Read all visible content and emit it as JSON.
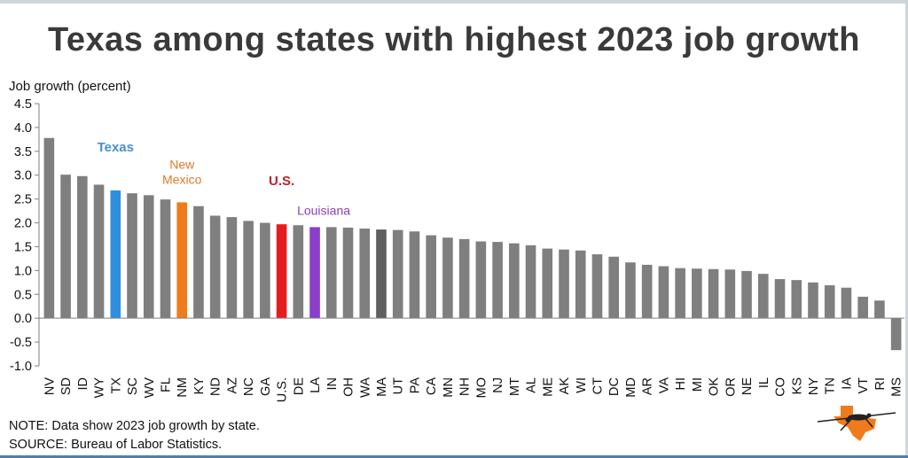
{
  "title": "Texas among states with highest 2023 job growth",
  "ylabel": "Job growth (percent)",
  "note": "NOTE: Data show 2023 job growth by state.",
  "source": "SOURCE: Bureau of Labor Statistics.",
  "colors": {
    "default_bar": "#7f7f7f",
    "texas": "#2f8fdd",
    "new_mexico": "#f07b1a",
    "us": "#e41e1e",
    "louisiana": "#8a3fc8",
    "massachusetts": "#5f5f5f",
    "texas_label": "#4a8fd0",
    "new_mexico_label": "#e07a26",
    "us_label": "#c0202a",
    "louisiana_label": "#8a3fb8"
  },
  "annotations": [
    {
      "text": "Texas",
      "state": "TX"
    },
    {
      "text": "New Mexico",
      "state": "NM"
    },
    {
      "text": "U.S.",
      "state": "U.S."
    },
    {
      "text": "Louisiana",
      "state": "LA"
    }
  ],
  "chart_data": {
    "type": "bar",
    "title": "Texas among states with highest 2023 job growth",
    "ylabel": "Job growth (percent)",
    "ylim": [
      -1.0,
      4.5
    ],
    "yticks": [
      -1.0,
      -0.5,
      0.0,
      0.5,
      1.0,
      1.5,
      2.0,
      2.5,
      3.0,
      3.5,
      4.0,
      4.5
    ],
    "grid": false,
    "categories": [
      "NV",
      "SD",
      "ID",
      "WY",
      "TX",
      "SC",
      "WV",
      "FL",
      "NM",
      "KY",
      "ND",
      "AZ",
      "NC",
      "GA",
      "U.S.",
      "DE",
      "LA",
      "IN",
      "OH",
      "WA",
      "MA",
      "UT",
      "PA",
      "CA",
      "MN",
      "NH",
      "MO",
      "NJ",
      "MT",
      "AL",
      "ME",
      "AK",
      "WI",
      "CT",
      "DC",
      "MD",
      "AR",
      "VA",
      "HI",
      "MI",
      "OK",
      "OR",
      "NE",
      "IL",
      "CO",
      "KS",
      "NY",
      "TN",
      "IA",
      "VT",
      "RI",
      "MS"
    ],
    "values": [
      3.78,
      3.01,
      2.98,
      2.8,
      2.68,
      2.62,
      2.58,
      2.49,
      2.43,
      2.35,
      2.15,
      2.12,
      2.04,
      2.0,
      1.97,
      1.95,
      1.91,
      1.91,
      1.9,
      1.88,
      1.86,
      1.85,
      1.82,
      1.74,
      1.69,
      1.66,
      1.61,
      1.6,
      1.57,
      1.53,
      1.46,
      1.44,
      1.42,
      1.34,
      1.29,
      1.17,
      1.12,
      1.09,
      1.05,
      1.04,
      1.03,
      1.02,
      0.99,
      0.93,
      0.82,
      0.8,
      0.75,
      0.69,
      0.64,
      0.45,
      0.37,
      -0.67
    ]
  }
}
